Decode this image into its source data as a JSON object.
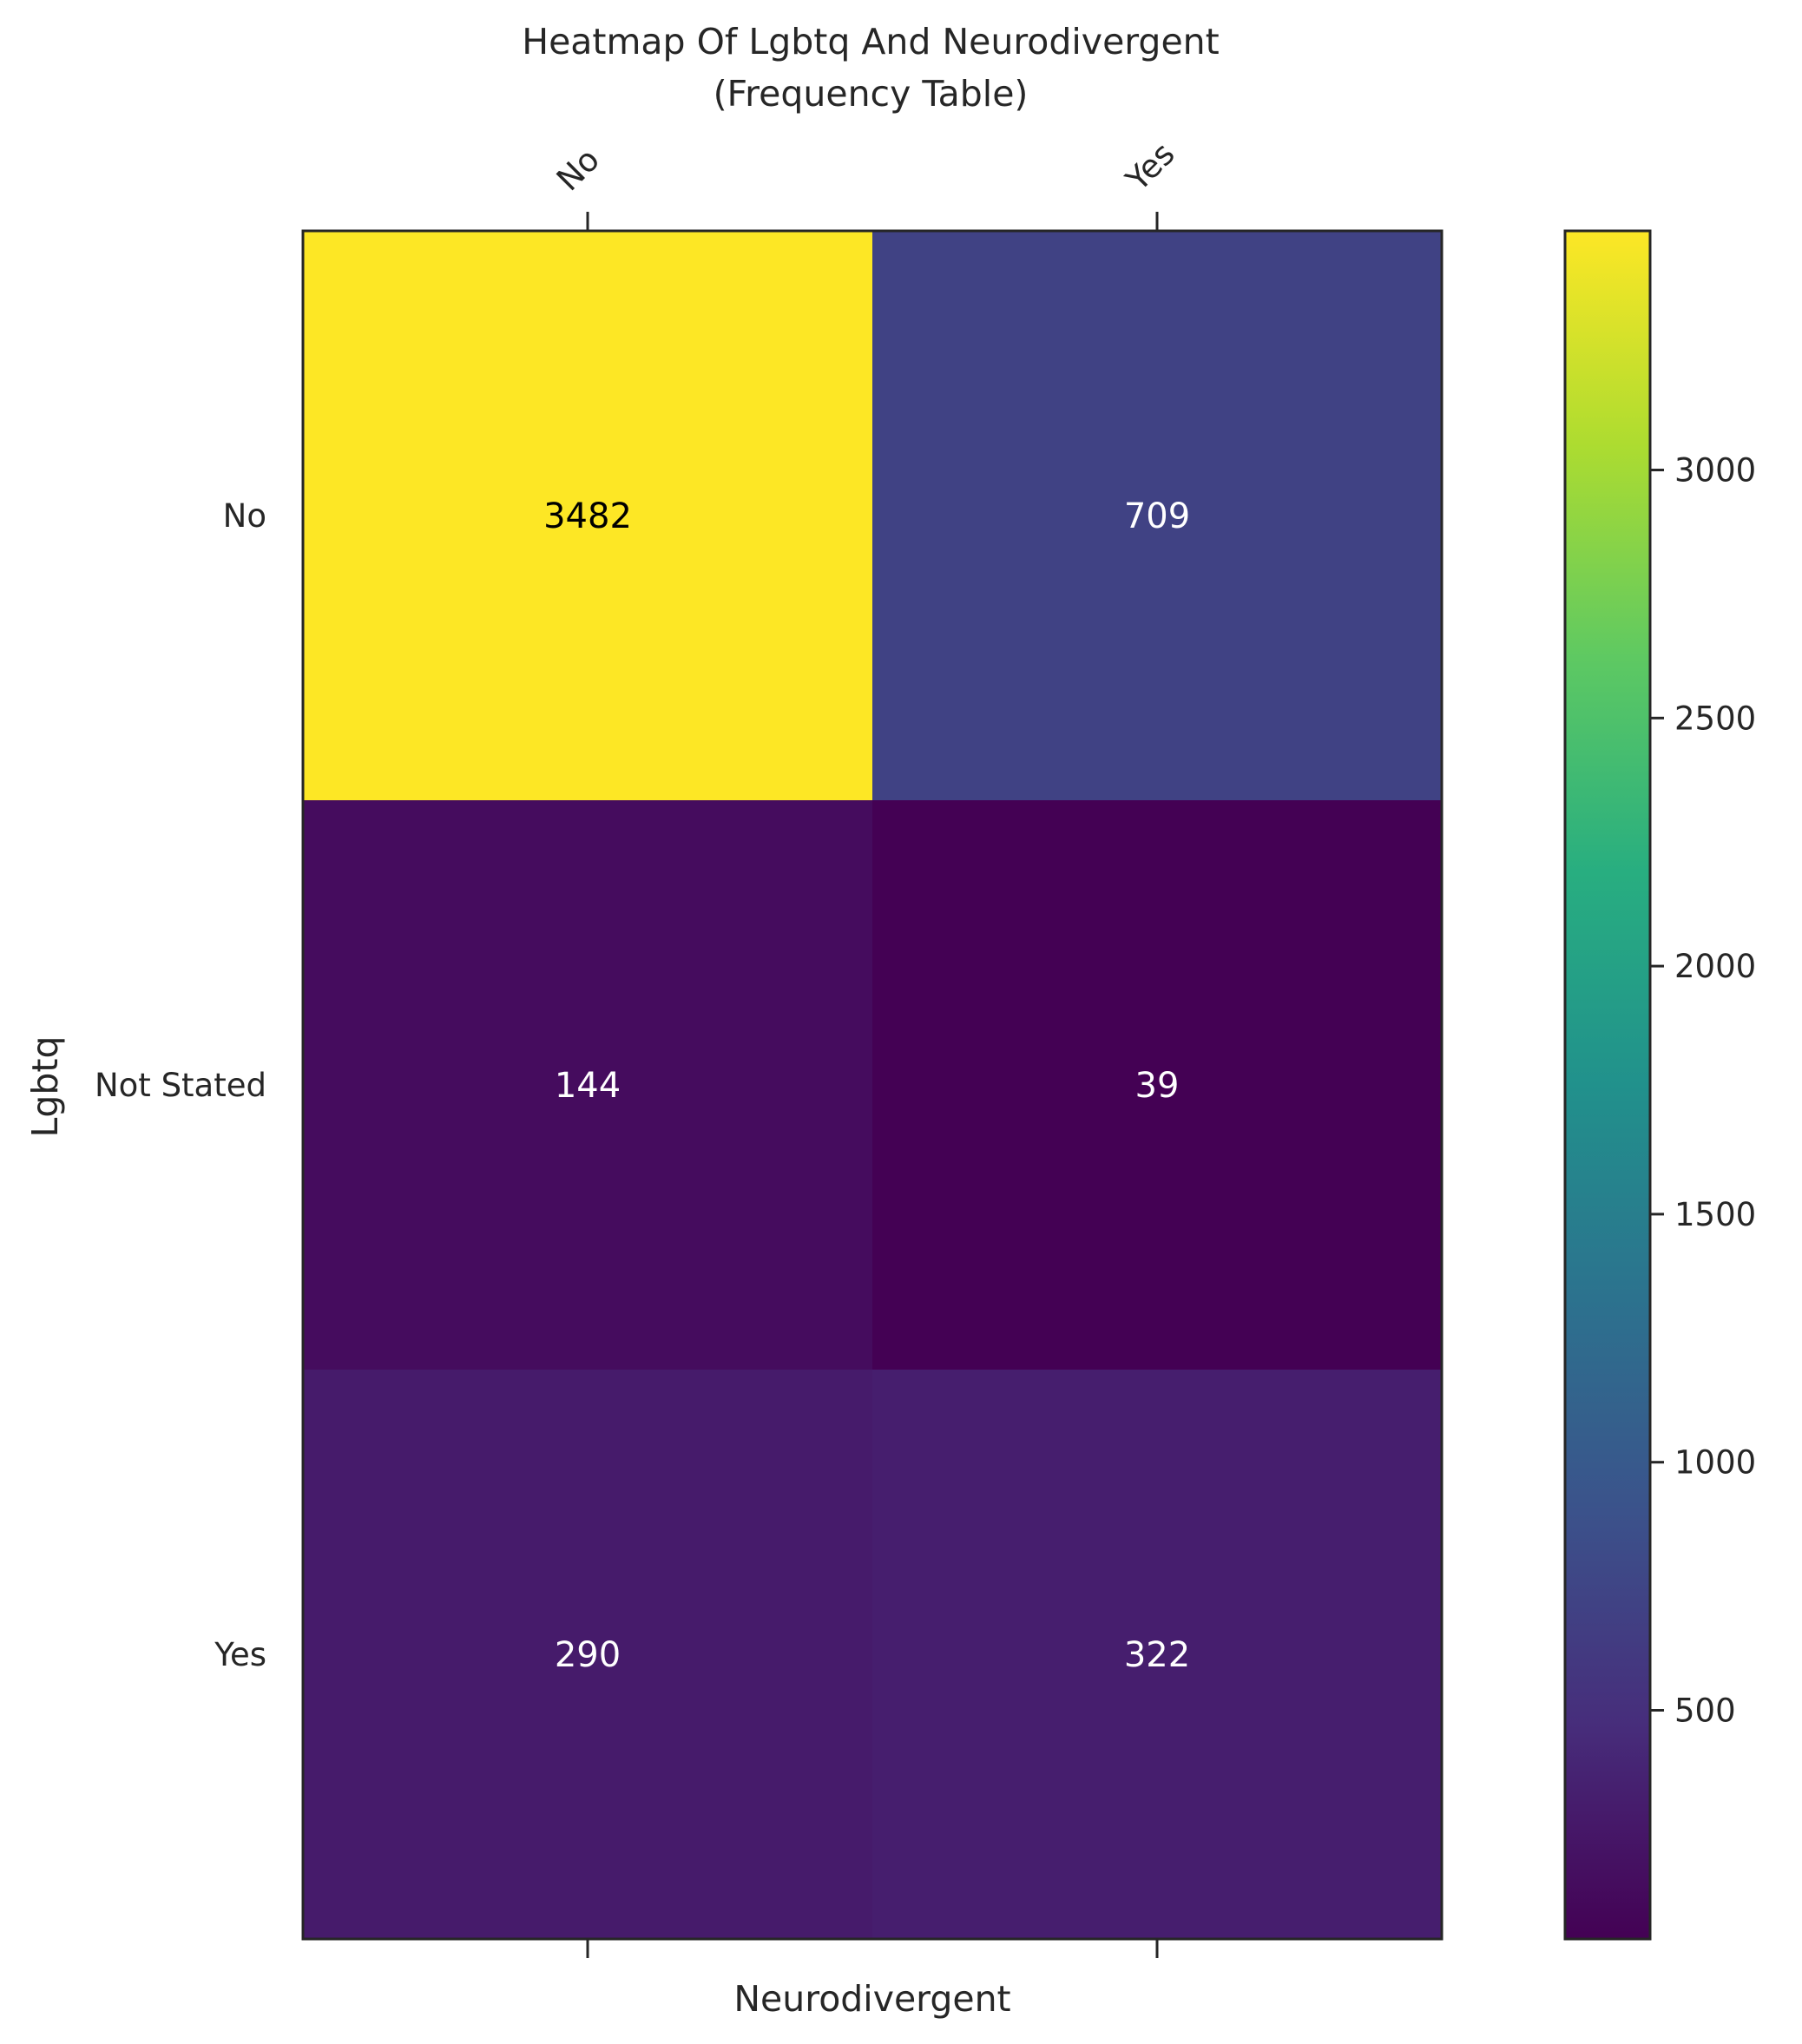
{
  "chart_data": {
    "type": "heatmap",
    "title": "Heatmap Of Lgbtq And Neurodivergent",
    "subtitle": "(Frequency Table)",
    "xlabel": "Neurodivergent",
    "ylabel": "Lgbtq",
    "x_categories": [
      "No",
      "Yes"
    ],
    "y_categories": [
      "No",
      "Not Stated",
      "Yes"
    ],
    "values": [
      [
        3482,
        709
      ],
      [
        144,
        39
      ],
      [
        290,
        322
      ]
    ],
    "colormap": "viridis",
    "colorbar": {
      "min": 39,
      "max": 3482,
      "ticks": [
        500,
        1000,
        1500,
        2000,
        2500,
        3000
      ]
    },
    "grid": false,
    "x_tick_position": "top",
    "legend": "colorbar-right"
  }
}
